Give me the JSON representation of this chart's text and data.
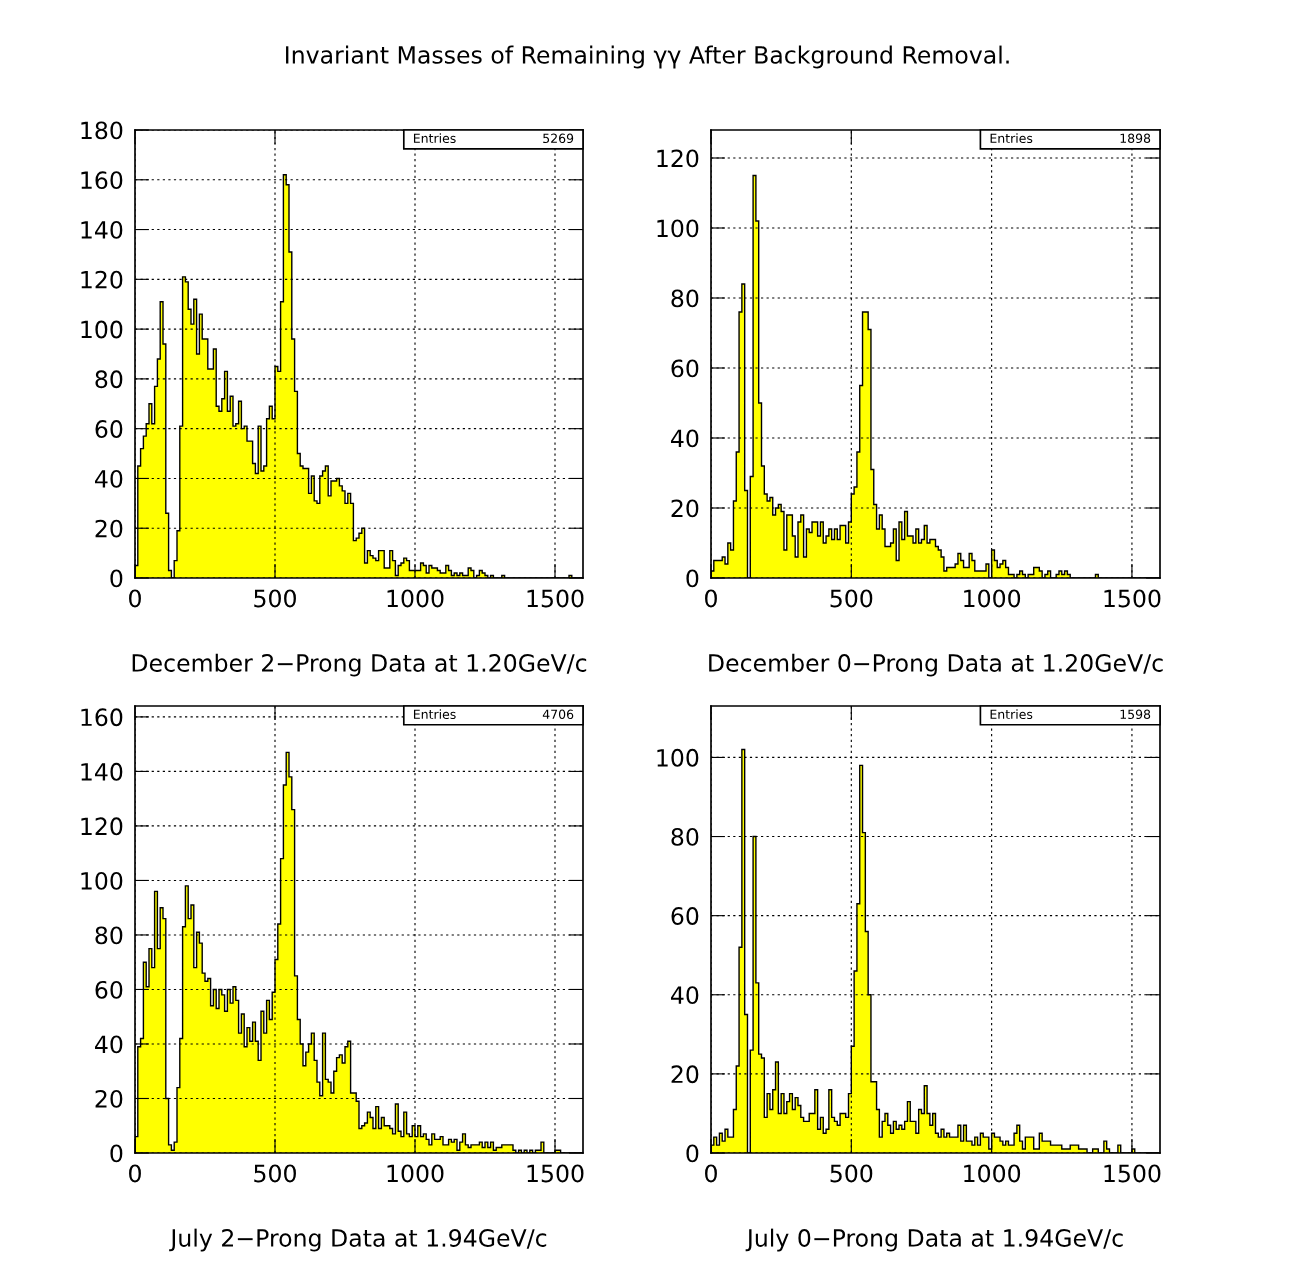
{
  "chart_data": [
    {
      "type": "histogram",
      "title": "Invariant Masses of Remaining γγ After Background Removal.",
      "xlabel": "December 2−Prong Data at 1.20GeV/c",
      "color": "#ffff00",
      "grid": true,
      "xlim": [
        0,
        1600
      ],
      "xticks": [
        0,
        500,
        1000,
        1500
      ],
      "ylim": [
        0,
        180
      ],
      "yticks": [
        0,
        20,
        40,
        60,
        80,
        100,
        120,
        140,
        160,
        180
      ],
      "annotations": [
        "Entries",
        "5269"
      ],
      "bins": [
        0,
        10,
        20,
        30,
        40,
        50,
        60,
        70,
        80,
        90,
        100,
        110,
        120,
        130,
        140,
        150,
        160,
        170,
        180,
        190,
        200,
        210,
        220,
        230,
        240,
        250,
        260,
        270,
        280,
        290,
        300,
        310,
        320,
        330,
        340,
        350,
        360,
        370,
        380,
        390,
        400,
        410,
        420,
        430,
        440,
        450,
        460,
        470,
        480,
        490,
        500,
        510,
        520,
        530,
        540,
        550,
        560,
        570,
        580,
        590,
        600,
        610,
        620,
        630,
        640,
        650,
        660,
        670,
        680,
        690,
        700,
        710,
        720,
        730,
        740,
        750,
        760,
        770,
        780,
        790,
        800,
        810,
        820,
        830,
        840,
        850,
        860,
        870,
        880,
        890,
        900,
        910,
        920,
        930,
        940,
        950,
        960,
        970,
        980,
        990,
        1000,
        1010,
        1020,
        1030,
        1040,
        1050,
        1060,
        1070,
        1080,
        1090,
        1100,
        1110,
        1120,
        1130,
        1140,
        1150,
        1160,
        1170,
        1180,
        1190,
        1200,
        1210,
        1220,
        1230,
        1240,
        1250,
        1260,
        1270,
        1280,
        1290,
        1300,
        1310,
        1320,
        1330,
        1340,
        1350,
        1360,
        1370,
        1380,
        1390,
        1400,
        1410,
        1420,
        1430,
        1440,
        1450,
        1460,
        1470,
        1480,
        1490,
        1500,
        1510,
        1520,
        1530,
        1540,
        1550,
        1560,
        1570,
        1580,
        1590,
        1600
      ],
      "values": [
        5,
        45,
        52,
        57,
        62,
        70,
        62,
        77,
        88,
        111,
        94,
        26,
        3,
        0,
        7,
        19,
        61,
        121,
        119,
        108,
        102,
        112,
        90,
        106,
        96,
        96,
        84,
        84,
        92,
        69,
        67,
        72,
        83,
        67,
        73,
        61,
        62,
        71,
        60,
        61,
        55,
        55,
        46,
        42,
        61,
        43,
        45,
        64,
        69,
        64,
        85,
        83,
        111,
        162,
        158,
        131,
        96,
        75,
        50,
        45,
        44,
        44,
        34,
        41,
        31,
        30,
        41,
        43,
        45,
        33,
        39,
        39,
        40,
        37,
        35,
        30,
        34,
        30,
        15,
        16,
        18,
        20,
        6,
        11,
        9,
        8,
        7,
        11,
        11,
        4,
        4,
        11,
        7,
        1,
        5,
        6,
        8,
        7,
        3,
        3,
        3,
        3,
        6,
        5,
        2,
        5,
        4,
        4,
        3,
        2,
        2,
        5,
        3,
        1,
        2,
        1,
        2,
        1,
        1,
        4,
        3,
        0,
        1,
        3,
        2,
        1,
        0,
        1,
        0,
        0,
        0,
        1,
        0,
        0,
        0,
        0,
        0,
        0,
        0,
        0,
        0,
        0,
        0,
        0,
        0,
        0,
        0,
        0,
        0,
        0,
        0,
        0,
        0,
        0,
        0,
        1,
        0,
        0,
        0,
        0
      ]
    },
    {
      "type": "histogram",
      "xlabel": "December 0−Prong Data at 1.20GeV/c",
      "color": "#ffff00",
      "grid": true,
      "xlim": [
        0,
        1600
      ],
      "xticks": [
        0,
        500,
        1000,
        1500
      ],
      "ylim": [
        0,
        128
      ],
      "yticks": [
        0,
        20,
        40,
        60,
        80,
        100,
        120
      ],
      "annotations": [
        "Entries",
        "1898"
      ],
      "bins": [
        0,
        10,
        20,
        30,
        40,
        50,
        60,
        70,
        80,
        90,
        100,
        110,
        120,
        130,
        140,
        150,
        160,
        170,
        180,
        190,
        200,
        210,
        220,
        230,
        240,
        250,
        260,
        270,
        280,
        290,
        300,
        310,
        320,
        330,
        340,
        350,
        360,
        370,
        380,
        390,
        400,
        410,
        420,
        430,
        440,
        450,
        460,
        470,
        480,
        490,
        500,
        510,
        520,
        530,
        540,
        550,
        560,
        570,
        580,
        590,
        600,
        610,
        620,
        630,
        640,
        650,
        660,
        670,
        680,
        690,
        700,
        710,
        720,
        730,
        740,
        750,
        760,
        770,
        780,
        790,
        800,
        810,
        820,
        830,
        840,
        850,
        860,
        870,
        880,
        890,
        900,
        910,
        920,
        930,
        940,
        950,
        960,
        970,
        980,
        990,
        1000,
        1010,
        1020,
        1030,
        1040,
        1050,
        1060,
        1070,
        1080,
        1090,
        1100,
        1110,
        1120,
        1130,
        1140,
        1150,
        1160,
        1170,
        1180,
        1190,
        1200,
        1210,
        1220,
        1230,
        1240,
        1250,
        1260,
        1270,
        1280,
        1290,
        1300,
        1310,
        1320,
        1330,
        1340,
        1350,
        1360,
        1370,
        1380,
        1390,
        1400,
        1410,
        1420,
        1430,
        1440,
        1450,
        1460,
        1470,
        1480,
        1490,
        1500,
        1510,
        1520,
        1530,
        1540,
        1550,
        1560,
        1570,
        1580,
        1590,
        1600
      ],
      "values": [
        2,
        5,
        5,
        5,
        6,
        4,
        10,
        8,
        22,
        36,
        76,
        84,
        25,
        0,
        29,
        115,
        102,
        50,
        32,
        24,
        22,
        23,
        18,
        20,
        21,
        19,
        8,
        18,
        18,
        12,
        6,
        16,
        18,
        6,
        14,
        13,
        16,
        16,
        12,
        16,
        10,
        12,
        14,
        11,
        14,
        11,
        15,
        15,
        10,
        16,
        24,
        26,
        36,
        55,
        76,
        76,
        71,
        31,
        21,
        14,
        18,
        14,
        9,
        9,
        10,
        14,
        5,
        16,
        11,
        19,
        12,
        12,
        10,
        14,
        10,
        11,
        15,
        10,
        11,
        11,
        9,
        8,
        6,
        2,
        3,
        3,
        3,
        4,
        7,
        5,
        3,
        3,
        7,
        5,
        2,
        2,
        2,
        2,
        4,
        0,
        8,
        5,
        3,
        4,
        5,
        3,
        1,
        1,
        0,
        1,
        2,
        1,
        0,
        1,
        1,
        3,
        3,
        2,
        0,
        1,
        2,
        0,
        0,
        1,
        2,
        1,
        2,
        1,
        0,
        0,
        0,
        0,
        0,
        0,
        0,
        0,
        0,
        1,
        0,
        0,
        0,
        0,
        0,
        0,
        0,
        0,
        0,
        0,
        0,
        0,
        0,
        0,
        0,
        0,
        0,
        0,
        0,
        0,
        0,
        0
      ]
    },
    {
      "type": "histogram",
      "xlabel": "July 2−Prong Data at 1.94GeV/c",
      "color": "#ffff00",
      "grid": true,
      "xlim": [
        0,
        1600
      ],
      "xticks": [
        0,
        500,
        1000,
        1500
      ],
      "ylim": [
        0,
        164
      ],
      "yticks": [
        0,
        20,
        40,
        60,
        80,
        100,
        120,
        140,
        160
      ],
      "annotations": [
        "Entries",
        "4706"
      ],
      "bins": [
        0,
        10,
        20,
        30,
        40,
        50,
        60,
        70,
        80,
        90,
        100,
        110,
        120,
        130,
        140,
        150,
        160,
        170,
        180,
        190,
        200,
        210,
        220,
        230,
        240,
        250,
        260,
        270,
        280,
        290,
        300,
        310,
        320,
        330,
        340,
        350,
        360,
        370,
        380,
        390,
        400,
        410,
        420,
        430,
        440,
        450,
        460,
        470,
        480,
        490,
        500,
        510,
        520,
        530,
        540,
        550,
        560,
        570,
        580,
        590,
        600,
        610,
        620,
        630,
        640,
        650,
        660,
        670,
        680,
        690,
        700,
        710,
        720,
        730,
        740,
        750,
        760,
        770,
        780,
        790,
        800,
        810,
        820,
        830,
        840,
        850,
        860,
        870,
        880,
        890,
        900,
        910,
        920,
        930,
        940,
        950,
        960,
        970,
        980,
        990,
        1000,
        1010,
        1020,
        1030,
        1040,
        1050,
        1060,
        1070,
        1080,
        1090,
        1100,
        1110,
        1120,
        1130,
        1140,
        1150,
        1160,
        1170,
        1180,
        1190,
        1200,
        1210,
        1220,
        1230,
        1240,
        1250,
        1260,
        1270,
        1280,
        1290,
        1300,
        1310,
        1320,
        1330,
        1340,
        1350,
        1360,
        1370,
        1380,
        1390,
        1400,
        1410,
        1420,
        1430,
        1440,
        1450,
        1460,
        1470,
        1480,
        1490,
        1500,
        1510,
        1520,
        1530,
        1540,
        1550,
        1560,
        1570,
        1580,
        1590,
        1600
      ],
      "values": [
        6,
        39,
        42,
        70,
        61,
        75,
        68,
        96,
        75,
        90,
        86,
        20,
        3,
        1,
        4,
        24,
        42,
        83,
        98,
        86,
        91,
        68,
        81,
        77,
        66,
        63,
        64,
        54,
        60,
        53,
        60,
        58,
        52,
        60,
        55,
        61,
        56,
        44,
        51,
        39,
        46,
        41,
        48,
        41,
        34,
        52,
        44,
        56,
        49,
        59,
        71,
        84,
        108,
        135,
        147,
        138,
        126,
        65,
        49,
        40,
        32,
        37,
        40,
        44,
        34,
        26,
        21,
        44,
        27,
        26,
        22,
        30,
        35,
        36,
        33,
        39,
        41,
        22,
        22,
        19,
        9,
        10,
        11,
        15,
        13,
        9,
        17,
        9,
        13,
        10,
        10,
        9,
        7,
        18,
        8,
        6,
        15,
        7,
        6,
        10,
        6,
        10,
        6,
        7,
        5,
        3,
        7,
        5,
        5,
        6,
        3,
        3,
        5,
        4,
        5,
        1,
        4,
        7,
        3,
        2,
        3,
        3,
        3,
        4,
        2,
        4,
        2,
        4,
        1,
        2,
        2,
        3,
        3,
        3,
        3,
        1,
        0,
        1,
        0,
        1,
        0,
        1,
        0,
        1,
        1,
        4,
        0,
        0,
        0,
        0,
        1,
        1,
        0,
        0,
        0,
        0,
        0,
        0,
        0,
        0
      ]
    },
    {
      "type": "histogram",
      "xlabel": "July 0−Prong Data at 1.94GeV/c",
      "color": "#ffff00",
      "grid": true,
      "xlim": [
        0,
        1600
      ],
      "xticks": [
        0,
        500,
        1000,
        1500
      ],
      "ylim": [
        0,
        113
      ],
      "yticks": [
        0,
        20,
        40,
        60,
        80,
        100
      ],
      "annotations": [
        "Entries",
        "1598"
      ],
      "bins": [
        0,
        10,
        20,
        30,
        40,
        50,
        60,
        70,
        80,
        90,
        100,
        110,
        120,
        130,
        140,
        150,
        160,
        170,
        180,
        190,
        200,
        210,
        220,
        230,
        240,
        250,
        260,
        270,
        280,
        290,
        300,
        310,
        320,
        330,
        340,
        350,
        360,
        370,
        380,
        390,
        400,
        410,
        420,
        430,
        440,
        450,
        460,
        470,
        480,
        490,
        500,
        510,
        520,
        530,
        540,
        550,
        560,
        570,
        580,
        590,
        600,
        610,
        620,
        630,
        640,
        650,
        660,
        670,
        680,
        690,
        700,
        710,
        720,
        730,
        740,
        750,
        760,
        770,
        780,
        790,
        800,
        810,
        820,
        830,
        840,
        850,
        860,
        870,
        880,
        890,
        900,
        910,
        920,
        930,
        940,
        950,
        960,
        970,
        980,
        990,
        1000,
        1010,
        1020,
        1030,
        1040,
        1050,
        1060,
        1070,
        1080,
        1090,
        1100,
        1110,
        1120,
        1130,
        1140,
        1150,
        1160,
        1170,
        1180,
        1190,
        1200,
        1210,
        1220,
        1230,
        1240,
        1250,
        1260,
        1270,
        1280,
        1290,
        1300,
        1310,
        1320,
        1330,
        1340,
        1350,
        1360,
        1370,
        1380,
        1390,
        1400,
        1410,
        1420,
        1430,
        1440,
        1450,
        1460,
        1470,
        1480,
        1490,
        1500,
        1510,
        1520,
        1530,
        1540,
        1550,
        1560,
        1570,
        1580,
        1590,
        1600
      ],
      "values": [
        2,
        4,
        2,
        5,
        3,
        6,
        4,
        4,
        11,
        22,
        52,
        102,
        35,
        0,
        26,
        80,
        43,
        25,
        24,
        9,
        15,
        11,
        16,
        23,
        10,
        15,
        10,
        13,
        15,
        11,
        14,
        12,
        9,
        8,
        8,
        10,
        10,
        16,
        6,
        9,
        5,
        6,
        16,
        9,
        8,
        7,
        10,
        10,
        9,
        15,
        27,
        46,
        63,
        98,
        81,
        56,
        40,
        18,
        18,
        11,
        4,
        8,
        10,
        7,
        5,
        8,
        6,
        7,
        6,
        8,
        13,
        8,
        8,
        5,
        11,
        10,
        17,
        10,
        7,
        10,
        5,
        4,
        6,
        4,
        5,
        4,
        4,
        4,
        7,
        3,
        7,
        3,
        3,
        2,
        4,
        2,
        5,
        4,
        4,
        1,
        5,
        4,
        4,
        3,
        2,
        3,
        2,
        2,
        5,
        7,
        3,
        1,
        4,
        4,
        4,
        1,
        1,
        5,
        3,
        3,
        3,
        2,
        2,
        2,
        2,
        1,
        1,
        1,
        2,
        2,
        2,
        1,
        1,
        1,
        0,
        0,
        1,
        1,
        0,
        0,
        3,
        1,
        0,
        0,
        0,
        2,
        0,
        0,
        0,
        0,
        1,
        0,
        0,
        0,
        0,
        0,
        0,
        0,
        0,
        0
      ]
    }
  ]
}
